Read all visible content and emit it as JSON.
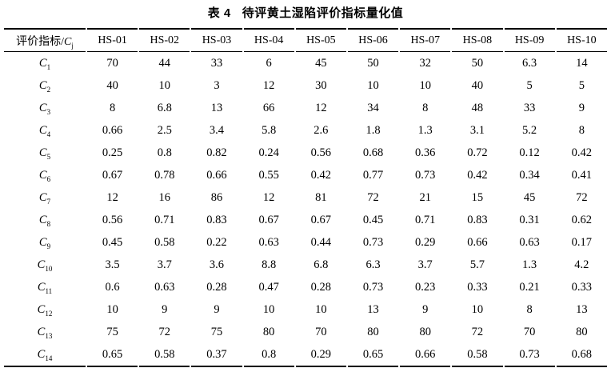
{
  "table": {
    "title_label": "表 4",
    "title_text": "待评黄土湿陷评价指标量化值",
    "header": {
      "first_col_prefix": "评价指标/",
      "first_col_symbol": "C",
      "first_col_sub": "j"
    },
    "columns": [
      "HS-01",
      "HS-02",
      "HS-03",
      "HS-04",
      "HS-05",
      "HS-06",
      "HS-07",
      "HS-08",
      "HS-09",
      "HS-10"
    ],
    "rows": [
      {
        "symbol": "C",
        "sub": "1",
        "values": [
          "70",
          "44",
          "33",
          "6",
          "45",
          "50",
          "32",
          "50",
          "6.3",
          "14"
        ]
      },
      {
        "symbol": "C",
        "sub": "2",
        "values": [
          "40",
          "10",
          "3",
          "12",
          "30",
          "10",
          "10",
          "40",
          "5",
          "5"
        ]
      },
      {
        "symbol": "C",
        "sub": "3",
        "values": [
          "8",
          "6.8",
          "13",
          "66",
          "12",
          "34",
          "8",
          "48",
          "33",
          "9"
        ]
      },
      {
        "symbol": "C",
        "sub": "4",
        "values": [
          "0.66",
          "2.5",
          "3.4",
          "5.8",
          "2.6",
          "1.8",
          "1.3",
          "3.1",
          "5.2",
          "8"
        ]
      },
      {
        "symbol": "C",
        "sub": "5",
        "values": [
          "0.25",
          "0.8",
          "0.82",
          "0.24",
          "0.56",
          "0.68",
          "0.36",
          "0.72",
          "0.12",
          "0.42"
        ]
      },
      {
        "symbol": "C",
        "sub": "6",
        "values": [
          "0.67",
          "0.78",
          "0.66",
          "0.55",
          "0.42",
          "0.77",
          "0.73",
          "0.42",
          "0.34",
          "0.41"
        ]
      },
      {
        "symbol": "C",
        "sub": "7",
        "values": [
          "12",
          "16",
          "86",
          "12",
          "81",
          "72",
          "21",
          "15",
          "45",
          "72"
        ]
      },
      {
        "symbol": "C",
        "sub": "8",
        "values": [
          "0.56",
          "0.71",
          "0.83",
          "0.67",
          "0.67",
          "0.45",
          "0.71",
          "0.83",
          "0.31",
          "0.62"
        ]
      },
      {
        "symbol": "C",
        "sub": "9",
        "values": [
          "0.45",
          "0.58",
          "0.22",
          "0.63",
          "0.44",
          "0.73",
          "0.29",
          "0.66",
          "0.63",
          "0.17"
        ]
      },
      {
        "symbol": "C",
        "sub": "10",
        "values": [
          "3.5",
          "3.7",
          "3.6",
          "8.8",
          "6.8",
          "6.3",
          "3.7",
          "5.7",
          "1.3",
          "4.2"
        ]
      },
      {
        "symbol": "C",
        "sub": "11",
        "values": [
          "0.6",
          "0.63",
          "0.28",
          "0.47",
          "0.28",
          "0.73",
          "0.23",
          "0.33",
          "0.21",
          "0.33"
        ]
      },
      {
        "symbol": "C",
        "sub": "12",
        "values": [
          "10",
          "9",
          "9",
          "10",
          "10",
          "13",
          "9",
          "10",
          "8",
          "13"
        ]
      },
      {
        "symbol": "C",
        "sub": "13",
        "values": [
          "75",
          "72",
          "75",
          "80",
          "70",
          "80",
          "80",
          "72",
          "70",
          "80"
        ]
      },
      {
        "symbol": "C",
        "sub": "14",
        "values": [
          "0.65",
          "0.58",
          "0.37",
          "0.8",
          "0.29",
          "0.65",
          "0.66",
          "0.58",
          "0.73",
          "0.68"
        ]
      }
    ]
  }
}
